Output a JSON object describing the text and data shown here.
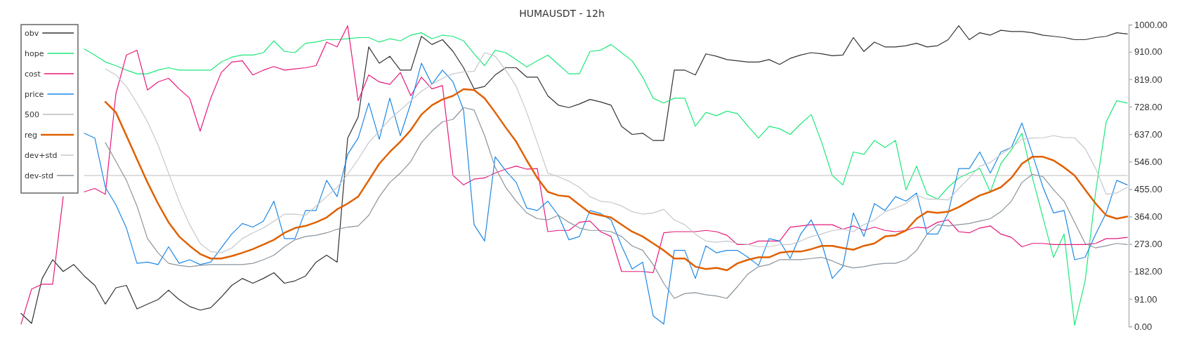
{
  "chart_data": {
    "type": "line",
    "title": "HUMAUSDT - 12h",
    "categories": [
      null,
      null,
      null,
      null,
      null,
      null,
      null,
      null,
      null,
      null,
      null,
      null,
      null,
      null,
      null,
      null,
      null,
      null,
      null,
      null,
      null,
      null,
      null,
      null,
      null,
      null,
      null,
      null,
      null,
      null,
      null,
      null,
      null,
      null,
      null,
      null,
      null,
      null,
      null,
      null,
      null,
      null,
      null,
      null,
      null,
      null,
      null,
      null,
      null,
      null,
      null,
      null,
      null,
      null,
      null,
      null,
      null,
      null,
      null,
      null,
      null,
      null,
      null,
      null,
      null,
      null,
      null,
      null,
      null,
      null,
      null,
      null,
      null,
      null,
      null,
      null,
      null,
      null,
      null,
      null,
      null,
      null,
      null,
      null,
      null,
      null,
      null,
      null,
      null,
      null,
      null,
      null,
      null,
      null,
      null,
      null,
      null,
      null,
      null,
      null,
      null,
      null,
      null,
      null,
      null,
      null
    ],
    "ylim": [
      0,
      1000
    ],
    "yticks": [
      {
        "value": 0,
        "label": "0.00"
      },
      {
        "value": 91,
        "label": "91.00"
      },
      {
        "value": 182,
        "label": "182.00"
      },
      {
        "value": 273,
        "label": "273.00"
      },
      {
        "value": 364,
        "label": "364.00"
      },
      {
        "value": 455,
        "label": "455.00"
      },
      {
        "value": 546,
        "label": "546.00"
      },
      {
        "value": 637,
        "label": "637.00"
      },
      {
        "value": 728,
        "label": "728.00"
      },
      {
        "value": 819,
        "label": "819.00"
      },
      {
        "value": 910,
        "label": "910.00"
      },
      {
        "value": 1000,
        "label": "1000.00"
      }
    ],
    "tick_labels": "y",
    "legend": "top left",
    "series": [
      {
        "name": "obv",
        "color": "#333333",
        "values": [
          43,
          10,
          159,
          221,
          182,
          205,
          167,
          136,
          74,
          128,
          136,
          58,
          74,
          89,
          120,
          89,
          66,
          54,
          62,
          97,
          136,
          159,
          143,
          159,
          178,
          143,
          151,
          167,
          213,
          236,
          213,
          624,
          694,
          926,
          872,
          895,
          849,
          849,
          961,
          934,
          950,
          911,
          857,
          787,
          795,
          833,
          857,
          857,
          826,
          826,
          764,
          733,
          725,
          737,
          752,
          744,
          733,
          663,
          636,
          640,
          616,
          616,
          849,
          849,
          833,
          903,
          895,
          884,
          880,
          876,
          876,
          884,
          868,
          888,
          899,
          907,
          903,
          897,
          899,
          957,
          911,
          942,
          926,
          926,
          930,
          938,
          926,
          930,
          950,
          996,
          950,
          973,
          965,
          981,
          977,
          977,
          973,
          965,
          961,
          957,
          950,
          950,
          957,
          961,
          973,
          969
        ]
      },
      {
        "name": "hope",
        "color": "#1de87a",
        "values": [
          null,
          null,
          null,
          null,
          null,
          null,
          919,
          899,
          876,
          864,
          849,
          837,
          837,
          849,
          857,
          849,
          849,
          849,
          849,
          876,
          892,
          899,
          899,
          907,
          946,
          911,
          907,
          938,
          942,
          950,
          950,
          953,
          957,
          957,
          942,
          953,
          946,
          965,
          973,
          953,
          965,
          961,
          946,
          903,
          864,
          915,
          907,
          884,
          860,
          880,
          899,
          868,
          837,
          837,
          911,
          915,
          934,
          907,
          880,
          826,
          756,
          740,
          756,
          756,
          663,
          709,
          698,
          713,
          705,
          663,
          624,
          663,
          655,
          636,
          671,
          702,
          609,
          500,
          469,
          578,
          570,
          616,
          593,
          616,
          453,
          531,
          438,
          422,
          461,
          492,
          508,
          523,
          446,
          539,
          585,
          640,
          492,
          360,
          229,
          306,
          4,
          151,
          446,
          678,
          748,
          740
        ]
      },
      {
        "name": "cost",
        "color": "#e6197a",
        "values": [
          8,
          124,
          140,
          140,
          430,
          null,
          446,
          457,
          438,
          771,
          899,
          915,
          783,
          810,
          822,
          787,
          756,
          647,
          756,
          841,
          876,
          880,
          833,
          849,
          861,
          849,
          853,
          857,
          864,
          942,
          926,
          996,
          748,
          833,
          810,
          802,
          841,
          764,
          826,
          787,
          798,
          500,
          469,
          488,
          492,
          508,
          521,
          531,
          521,
          523,
          314,
          318,
          318,
          345,
          349,
          314,
          298,
          182,
          182,
          182,
          178,
          310,
          314,
          314,
          314,
          318,
          314,
          302,
          271,
          271,
          283,
          283,
          283,
          329,
          333,
          337,
          337,
          337,
          322,
          333,
          318,
          329,
          318,
          314,
          318,
          329,
          326,
          345,
          353,
          314,
          310,
          326,
          333,
          306,
          295,
          264,
          275,
          275,
          271,
          271,
          271,
          271,
          275,
          291,
          291,
          295
        ]
      },
      {
        "name": "price",
        "color": "#1e88e5",
        "values": [
          null,
          null,
          null,
          null,
          null,
          null,
          640,
          624,
          461,
          403,
          326,
          209,
          213,
          205,
          264,
          209,
          221,
          205,
          213,
          260,
          306,
          341,
          329,
          349,
          415,
          291,
          291,
          384,
          384,
          484,
          430,
          570,
          624,
          740,
          620,
          756,
          632,
          740,
          872,
          802,
          849,
          810,
          717,
          337,
          283,
          562,
          516,
          477,
          392,
          384,
          415,
          368,
          287,
          298,
          384,
          374,
          353,
          267,
          190,
          213,
          35,
          8,
          252,
          252,
          159,
          267,
          244,
          252,
          252,
          229,
          202,
          291,
          283,
          225,
          306,
          353,
          275,
          159,
          198,
          376,
          298,
          407,
          384,
          430,
          415,
          442,
          306,
          306,
          376,
          523,
          523,
          578,
          508,
          578,
          593,
          674,
          570,
          461,
          376,
          384,
          221,
          229,
          306,
          376,
          484,
          469
        ]
      },
      {
        "name": "500",
        "color": "#bdbdbd",
        "values": [
          null,
          null,
          null,
          null,
          null,
          null,
          500,
          500,
          500,
          500,
          500,
          500,
          500,
          500,
          500,
          500,
          500,
          500,
          500,
          500,
          500,
          500,
          500,
          500,
          500,
          500,
          500,
          500,
          500,
          500,
          500,
          500,
          500,
          500,
          500,
          500,
          500,
          500,
          500,
          500,
          500,
          500,
          500,
          500,
          500,
          500,
          500,
          500,
          500,
          500,
          500,
          500,
          500,
          500,
          500,
          500,
          500,
          500,
          500,
          500,
          500,
          500,
          500,
          500,
          500,
          500,
          500,
          500,
          500,
          500,
          500,
          500,
          500,
          500,
          500,
          500,
          500,
          500,
          500,
          500,
          500,
          500,
          500,
          500,
          500,
          500,
          500,
          500,
          500,
          500,
          500,
          500,
          500,
          500,
          500,
          500,
          500,
          500,
          500,
          500,
          500,
          500,
          500,
          500,
          500,
          500
        ]
      },
      {
        "name": "reg",
        "color": "#e06000",
        "values": [
          null,
          null,
          null,
          null,
          null,
          null,
          null,
          null,
          744,
          709,
          632,
          554,
          477,
          407,
          345,
          298,
          267,
          240,
          225,
          225,
          233,
          244,
          256,
          271,
          287,
          310,
          326,
          333,
          345,
          361,
          388,
          407,
          430,
          484,
          539,
          578,
          612,
          651,
          702,
          733,
          752,
          764,
          786,
          783,
          756,
          709,
          659,
          612,
          550,
          492,
          446,
          434,
          430,
          403,
          376,
          368,
          361,
          337,
          314,
          298,
          275,
          252,
          225,
          225,
          198,
          190,
          194,
          186,
          209,
          221,
          229,
          229,
          244,
          248,
          248,
          256,
          267,
          267,
          260,
          254,
          267,
          275,
          298,
          302,
          318,
          357,
          380,
          376,
          380,
          395,
          415,
          434,
          446,
          461,
          492,
          539,
          562,
          562,
          550,
          527,
          500,
          453,
          407,
          368,
          357,
          364
        ]
      },
      {
        "name": "dev+std",
        "color": "#c4c8cc",
        "values": [
          null,
          null,
          null,
          null,
          null,
          null,
          null,
          null,
          853,
          833,
          795,
          740,
          678,
          601,
          508,
          415,
          337,
          275,
          248,
          244,
          260,
          291,
          310,
          326,
          349,
          372,
          372,
          368,
          399,
          430,
          461,
          504,
          554,
          609,
          647,
          686,
          717,
          748,
          779,
          802,
          822,
          837,
          843,
          845,
          907,
          895,
          849,
          795,
          709,
          609,
          508,
          496,
          481,
          461,
          430,
          415,
          411,
          399,
          380,
          372,
          376,
          388,
          353,
          337,
          306,
          283,
          279,
          283,
          275,
          271,
          264,
          264,
          271,
          271,
          283,
          298,
          306,
          318,
          322,
          314,
          337,
          353,
          380,
          392,
          407,
          434,
          422,
          422,
          419,
          457,
          492,
          531,
          543,
          570,
          593,
          620,
          624,
          625,
          632,
          626,
          625,
          589,
          523,
          438,
          442,
          461
        ]
      },
      {
        "name": "dev-std",
        "color": "#8a949c",
        "values": [
          null,
          null,
          null,
          null,
          null,
          null,
          null,
          null,
          609,
          547,
          484,
          399,
          291,
          244,
          209,
          202,
          198,
          202,
          205,
          205,
          205,
          205,
          209,
          221,
          236,
          264,
          287,
          298,
          302,
          310,
          322,
          329,
          333,
          368,
          430,
          477,
          508,
          547,
          609,
          647,
          678,
          686,
          725,
          717,
          632,
          527,
          461,
          415,
          376,
          357,
          353,
          368,
          345,
          326,
          318,
          318,
          314,
          298,
          267,
          252,
          205,
          143,
          93,
          109,
          112,
          105,
          101,
          93,
          132,
          174,
          198,
          205,
          221,
          221,
          221,
          225,
          229,
          217,
          202,
          194,
          198,
          205,
          209,
          209,
          221,
          252,
          306,
          337,
          333,
          337,
          341,
          349,
          357,
          380,
          415,
          477,
          504,
          496,
          453,
          415,
          345,
          275,
          260,
          267,
          275,
          271
        ]
      }
    ]
  }
}
